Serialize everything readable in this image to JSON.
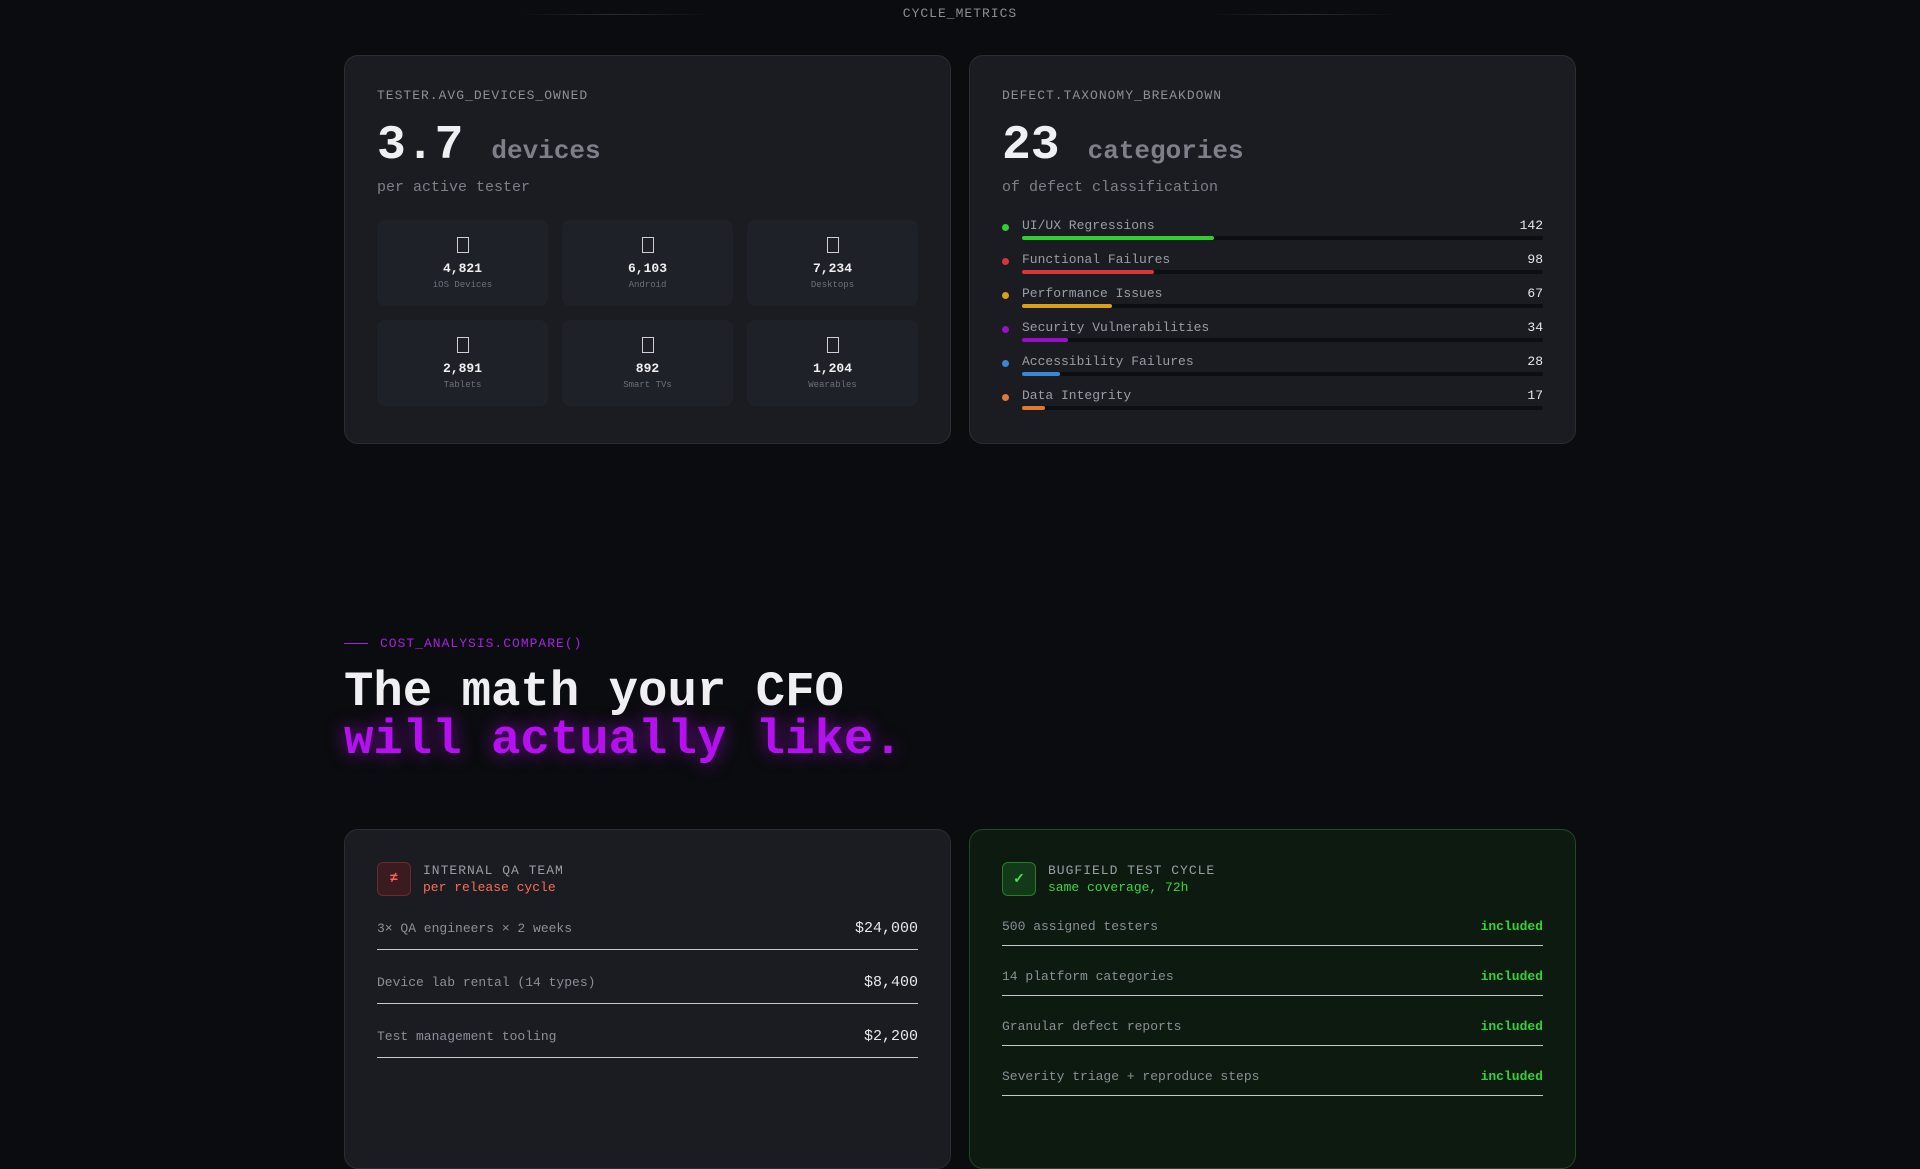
{
  "header": {
    "title": "CYCLE_METRICS"
  },
  "cards": [
    {
      "label": "TESTER.AVG_DEVICES_OWNED",
      "value": "3.7",
      "unit": "devices",
      "sub": "per active tester",
      "devices": [
        {
          "count": "4,821",
          "label": "iOS Devices"
        },
        {
          "count": "6,103",
          "label": "Android"
        },
        {
          "count": "7,234",
          "label": "Desktops"
        },
        {
          "count": "2,891",
          "label": "Tablets"
        },
        {
          "count": "892",
          "label": "Smart TVs"
        },
        {
          "count": "1,204",
          "label": "Wearables"
        }
      ]
    },
    {
      "label": "DEFECT.TAXONOMY_BREAKDOWN",
      "value": "23",
      "unit": "categories",
      "sub": "of defect classification",
      "defects": [
        {
          "name": "UI/UX Regressions",
          "value": 142,
          "color": "#2fd12f"
        },
        {
          "name": "Functional Failures",
          "value": 98,
          "color": "#d8343e"
        },
        {
          "name": "Performance Issues",
          "value": 67,
          "color": "#d9a01a"
        },
        {
          "name": "Security Vulnerabilities",
          "value": 34,
          "color": "#9a10c8"
        },
        {
          "name": "Accessibility Failures",
          "value": 28,
          "color": "#3a86d8"
        },
        {
          "name": "Data Integrity",
          "value": 17,
          "color": "#e07a30"
        }
      ]
    }
  ],
  "section": {
    "tag": "COST_ANALYSIS.COMPARE()",
    "heading_line1": "The math your CFO",
    "heading_line2": "will actually like."
  },
  "compare": [
    {
      "icon": "≠",
      "title": "INTERNAL QA TEAM",
      "subtitle": "per release cycle",
      "rows": [
        {
          "label": "3× QA engineers × 2 weeks",
          "value": "$24,000"
        },
        {
          "label": "Device lab rental (14 types)",
          "value": "$8,400"
        },
        {
          "label": "Test management tooling",
          "value": "$2,200"
        }
      ]
    },
    {
      "icon": "✓",
      "title": "BUGFIELD TEST CYCLE",
      "subtitle": "same coverage, 72h",
      "rows": [
        {
          "label": "500 assigned testers",
          "value": "included"
        },
        {
          "label": "14 platform categories",
          "value": "included"
        },
        {
          "label": "Granular defect reports",
          "value": "included"
        },
        {
          "label": "Severity triage + reproduce steps",
          "value": "included"
        }
      ]
    }
  ]
}
